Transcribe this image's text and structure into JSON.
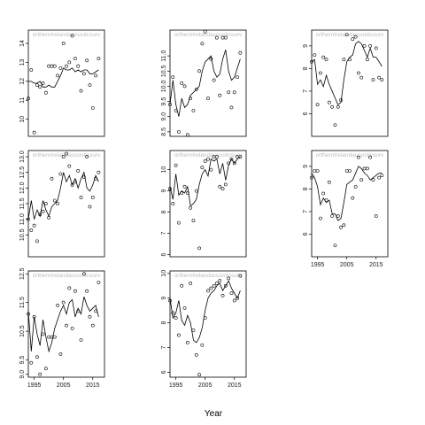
{
  "figure": {
    "xlabel": "Year"
  },
  "chart_data": [
    {
      "type": "scatter",
      "title": "orthernIrelandacousticsurv",
      "xlim": [
        1993,
        2019
      ],
      "ylim": [
        9.1,
        14.7
      ],
      "yticks": [
        10,
        11,
        12,
        13,
        14
      ],
      "show_xticks": false,
      "xticks": [
        1995,
        2005,
        2015
      ],
      "series": [
        {
          "name": "observed",
          "mode": "markers",
          "x": [
            1993,
            1994,
            1995,
            1996,
            1997,
            1998,
            1999,
            2000,
            2001,
            2002,
            2003,
            2004,
            2005,
            2006,
            2007,
            2008,
            2009,
            2010,
            2011,
            2012,
            2013,
            2014,
            2015,
            2016,
            2017
          ],
          "y": [
            11.1,
            12.6,
            9.3,
            11.8,
            11.7,
            11.9,
            11.4,
            12.8,
            12.8,
            12.8,
            12.3,
            12.7,
            14.0,
            12.8,
            13.0,
            14.4,
            13.2,
            12.8,
            11.5,
            12.4,
            13.1,
            11.8,
            10.6,
            12.3,
            13.2
          ]
        },
        {
          "name": "fitted",
          "mode": "line",
          "x": [
            1993,
            1994,
            1995,
            1996,
            1997,
            1998,
            1999,
            2000,
            2001,
            2002,
            2003,
            2004,
            2005,
            2006,
            2007,
            2008,
            2009,
            2010,
            2011,
            2012,
            2013,
            2014,
            2015,
            2016,
            2017
          ],
          "y": [
            12.0,
            12.0,
            11.9,
            11.9,
            12.0,
            11.7,
            11.7,
            11.8,
            11.7,
            11.7,
            12.0,
            12.3,
            12.7,
            12.6,
            12.6,
            12.7,
            12.5,
            12.6,
            12.5,
            12.6,
            12.6,
            12.4,
            12.4,
            12.5,
            12.6
          ]
        }
      ]
    },
    {
      "type": "scatter",
      "title": "orthernIrelandacousticsurv",
      "xlim": [
        1993,
        2019
      ],
      "ylim": [
        8.35,
        11.85
      ],
      "yticks": [
        8.5,
        9.0,
        9.5,
        10.0,
        10.5,
        11.0
      ],
      "show_xticks": false,
      "xticks": [
        1995,
        2005,
        2015
      ],
      "series": [
        {
          "name": "observed",
          "mode": "markers",
          "x": [
            1993,
            1994,
            1995,
            1996,
            1997,
            1998,
            1999,
            2000,
            2001,
            2002,
            2003,
            2004,
            2005,
            2006,
            2007,
            2008,
            2009,
            2010,
            2011,
            2012,
            2013,
            2014,
            2015,
            2016,
            2017
          ],
          "y": [
            9.4,
            10.3,
            9.2,
            8.5,
            10.1,
            10.0,
            8.4,
            9.6,
            9.2,
            9.9,
            10.5,
            11.4,
            11.8,
            9.6,
            10.9,
            10.2,
            11.6,
            9.7,
            11.6,
            11.6,
            9.8,
            9.3,
            9.8,
            10.3,
            11.1
          ]
        },
        {
          "name": "fitted",
          "mode": "line",
          "x": [
            1993,
            1994,
            1995,
            1996,
            1997,
            1998,
            1999,
            2000,
            2001,
            2002,
            2003,
            2004,
            2005,
            2006,
            2007,
            2008,
            2009,
            2010,
            2011,
            2012,
            2013,
            2014,
            2015,
            2016,
            2017
          ],
          "y": [
            9.4,
            10.2,
            9.4,
            9.0,
            9.6,
            9.3,
            9.4,
            9.7,
            9.8,
            9.9,
            10.0,
            10.5,
            10.8,
            10.9,
            11.0,
            10.5,
            10.3,
            10.4,
            10.9,
            11.2,
            10.5,
            10.2,
            10.3,
            10.6,
            10.9
          ]
        }
      ]
    },
    {
      "type": "scatter",
      "title": "orthernIrelandacousticsurv",
      "xlim": [
        1993,
        2019
      ],
      "ylim": [
        5.0,
        9.7
      ],
      "yticks": [
        6,
        7,
        8,
        9
      ],
      "show_xticks": false,
      "xticks": [
        1995,
        2005,
        2015
      ],
      "series": [
        {
          "name": "observed",
          "mode": "markers",
          "x": [
            1993,
            1994,
            1995,
            1996,
            1997,
            1998,
            1999,
            2000,
            2001,
            2002,
            2003,
            2004,
            2005,
            2006,
            2007,
            2008,
            2009,
            2010,
            2011,
            2012,
            2013,
            2014,
            2015,
            2016,
            2017
          ],
          "y": [
            8.3,
            8.6,
            6.4,
            7.8,
            8.5,
            8.4,
            6.5,
            6.3,
            5.5,
            6.3,
            6.6,
            8.4,
            9.5,
            8.4,
            9.3,
            9.4,
            7.8,
            7.6,
            9.0,
            8.4,
            9.0,
            7.5,
            8.9,
            7.6,
            7.5
          ]
        },
        {
          "name": "fitted",
          "mode": "line",
          "x": [
            1993,
            1994,
            1995,
            1996,
            1997,
            1998,
            1999,
            2000,
            2001,
            2002,
            2003,
            2004,
            2005,
            2006,
            2007,
            2008,
            2009,
            2010,
            2011,
            2012,
            2013,
            2014,
            2015,
            2016,
            2017
          ],
          "y": [
            8.3,
            8.4,
            7.3,
            7.5,
            7.2,
            7.7,
            7.3,
            7.0,
            6.7,
            6.4,
            6.5,
            7.5,
            8.3,
            8.5,
            8.6,
            9.1,
            9.2,
            9.1,
            8.8,
            8.5,
            8.9,
            8.5,
            8.5,
            8.3,
            8.1
          ]
        }
      ]
    },
    {
      "type": "scatter",
      "title": "orthernIrelandacousticsurv",
      "xlim": [
        1993,
        2019
      ],
      "ylim": [
        9.8,
        13.2
      ],
      "yticks": [
        10.5,
        11.0,
        11.5,
        12.0,
        12.5,
        13.0
      ],
      "show_xticks": false,
      "xticks": [
        1995,
        2005,
        2015
      ],
      "series": [
        {
          "name": "observed",
          "mode": "markers",
          "x": [
            1993,
            1994,
            1995,
            1996,
            1997,
            1998,
            1999,
            2000,
            2001,
            2002,
            2003,
            2004,
            2005,
            2006,
            2007,
            2008,
            2009,
            2010,
            2011,
            2012,
            2013,
            2014,
            2015,
            2016,
            2017
          ],
          "y": [
            11.0,
            10.65,
            10.8,
            10.3,
            11.15,
            11.25,
            11.5,
            11.05,
            12.3,
            11.6,
            11.5,
            12.45,
            13.0,
            13.1,
            12.7,
            12.1,
            12.2,
            12.55,
            11.7,
            12.35,
            13.0,
            11.4,
            11.7,
            12.3,
            12.5
          ]
        },
        {
          "name": "fitted",
          "mode": "line",
          "x": [
            1993,
            1994,
            1995,
            1996,
            1997,
            1998,
            1999,
            2000,
            2001,
            2002,
            2003,
            2004,
            2005,
            2006,
            2007,
            2008,
            2009,
            2010,
            2011,
            2012,
            2013,
            2014,
            2015,
            2016,
            2017
          ],
          "y": [
            11.0,
            11.6,
            11.0,
            11.3,
            11.1,
            11.6,
            11.3,
            11.1,
            11.4,
            11.5,
            11.6,
            12.0,
            12.5,
            12.2,
            12.4,
            12.1,
            12.3,
            12.0,
            12.3,
            12.5,
            12.0,
            11.9,
            12.1,
            12.4,
            12.2
          ]
        }
      ]
    },
    {
      "type": "scatter",
      "title": "orthernIrelandacousticsurv",
      "xlim": [
        1993,
        2019
      ],
      "ylim": [
        5.9,
        10.9
      ],
      "yticks": [
        6,
        7,
        8,
        9,
        10
      ],
      "show_xticks": false,
      "xticks": [
        1995,
        2005,
        2015
      ],
      "series": [
        {
          "name": "observed",
          "mode": "markers",
          "x": [
            1993,
            1994,
            1995,
            1996,
            1997,
            1998,
            1999,
            2000,
            2001,
            2002,
            2003,
            2004,
            2005,
            2006,
            2007,
            2008,
            2009,
            2010,
            2011,
            2012,
            2013,
            2014,
            2015,
            2016,
            2017
          ],
          "y": [
            9.1,
            8.4,
            10.2,
            7.5,
            8.9,
            9.2,
            8.9,
            8.2,
            7.6,
            9.0,
            6.3,
            10.1,
            10.4,
            10.5,
            10.0,
            10.6,
            10.6,
            9.2,
            9.1,
            9.3,
            10.3,
            10.5,
            10.3,
            10.6,
            10.6
          ]
        },
        {
          "name": "fitted",
          "mode": "line",
          "x": [
            1993,
            1994,
            1995,
            1996,
            1997,
            1998,
            1999,
            2000,
            2001,
            2002,
            2003,
            2004,
            2005,
            2006,
            2007,
            2008,
            2009,
            2010,
            2011,
            2012,
            2013,
            2014,
            2015,
            2016,
            2017
          ],
          "y": [
            9.2,
            8.6,
            9.8,
            8.8,
            9.0,
            8.9,
            9.2,
            8.3,
            8.4,
            8.6,
            9.3,
            9.8,
            10.0,
            9.7,
            10.5,
            10.4,
            10.5,
            9.8,
            10.3,
            9.5,
            10.2,
            10.5,
            10.3,
            10.5,
            10.6
          ]
        }
      ]
    },
    {
      "type": "scatter",
      "title": "orthernIrelandacousticsurv",
      "xlim": [
        1993,
        2019
      ],
      "ylim": [
        5.0,
        9.7
      ],
      "yticks": [
        6,
        7,
        8,
        9
      ],
      "show_xticks": true,
      "xticks": [
        1995,
        2005,
        2015
      ],
      "series": [
        {
          "name": "observed",
          "mode": "markers",
          "x": [
            1993,
            1994,
            1995,
            1996,
            1997,
            1998,
            1999,
            2000,
            2001,
            2002,
            2003,
            2004,
            2005,
            2006,
            2007,
            2008,
            2009,
            2010,
            2011,
            2012,
            2013,
            2014,
            2015,
            2016,
            2017
          ],
          "y": [
            8.5,
            8.8,
            8.8,
            6.7,
            7.8,
            7.5,
            8.3,
            6.8,
            5.5,
            6.8,
            6.3,
            6.4,
            8.8,
            8.8,
            7.6,
            8.1,
            9.4,
            8.4,
            8.9,
            8.9,
            9.4,
            8.4,
            6.8,
            8.5,
            8.6
          ]
        },
        {
          "name": "fitted",
          "mode": "line",
          "x": [
            1993,
            1994,
            1995,
            1996,
            1997,
            1998,
            1999,
            2000,
            2001,
            2002,
            2003,
            2004,
            2005,
            2006,
            2007,
            2008,
            2009,
            2010,
            2011,
            2012,
            2013,
            2014,
            2015,
            2016,
            2017
          ],
          "y": [
            8.7,
            8.5,
            8.1,
            7.3,
            7.6,
            7.4,
            7.5,
            6.9,
            6.9,
            6.6,
            6.7,
            7.4,
            8.2,
            8.3,
            8.4,
            8.7,
            9.0,
            8.9,
            8.7,
            8.6,
            8.4,
            8.5,
            8.6,
            8.7,
            8.7
          ]
        }
      ]
    },
    {
      "type": "scatter",
      "title": "orthernIrelandacousticsurv",
      "xlim": [
        1993,
        2019
      ],
      "ylim": [
        8.9,
        12.6
      ],
      "yticks": [
        9.0,
        9.5,
        10.5,
        11.5,
        12.5
      ],
      "show_xticks": true,
      "xticks": [
        1995,
        2005,
        2015
      ],
      "series": [
        {
          "name": "observed",
          "mode": "markers",
          "x": [
            1993,
            1994,
            1995,
            1996,
            1997,
            1998,
            1999,
            2000,
            2001,
            2002,
            2003,
            2004,
            2005,
            2006,
            2007,
            2008,
            2009,
            2010,
            2011,
            2012,
            2013,
            2014,
            2015,
            2016,
            2017
          ],
          "y": [
            11.1,
            9.4,
            11.0,
            9.6,
            9.0,
            10.4,
            9.2,
            10.3,
            10.3,
            10.3,
            11.4,
            9.7,
            11.5,
            10.7,
            12.0,
            10.6,
            11.9,
            11.2,
            10.2,
            12.5,
            11.9,
            11.0,
            10.7,
            11.2,
            12.2
          ]
        },
        {
          "name": "fitted",
          "mode": "line",
          "x": [
            1993,
            1994,
            1995,
            1996,
            1997,
            1998,
            1999,
            2000,
            2001,
            2002,
            2003,
            2004,
            2005,
            2006,
            2007,
            2008,
            2009,
            2010,
            2011,
            2012,
            2013,
            2014,
            2015,
            2016,
            2017
          ],
          "y": [
            11.2,
            9.8,
            11.0,
            10.4,
            10.0,
            10.9,
            10.3,
            9.8,
            10.1,
            10.6,
            10.9,
            11.2,
            11.4,
            11.1,
            11.5,
            11.6,
            11.0,
            11.3,
            11.1,
            11.7,
            11.4,
            11.2,
            11.3,
            11.4,
            11.0
          ]
        }
      ]
    },
    {
      "type": "scatter",
      "title": "orthernIrelandacousticsurv",
      "xlim": [
        1993,
        2019
      ],
      "ylim": [
        5.8,
        10.1
      ],
      "yticks": [
        6,
        7,
        8,
        9,
        10
      ],
      "show_xticks": true,
      "xticks": [
        1995,
        2005,
        2015
      ],
      "series": [
        {
          "name": "observed",
          "mode": "markers",
          "x": [
            1993,
            1994,
            1995,
            1996,
            1997,
            1998,
            1999,
            2000,
            2001,
            2002,
            2003,
            2004,
            2005,
            2006,
            2007,
            2008,
            2009,
            2010,
            2011,
            2012,
            2013,
            2014,
            2015,
            2016,
            2017
          ],
          "y": [
            8.9,
            8.4,
            8.2,
            7.5,
            9.5,
            8.6,
            7.2,
            9.6,
            7.7,
            6.7,
            5.9,
            7.1,
            8.2,
            9.3,
            9.4,
            9.5,
            9.6,
            9.7,
            9.1,
            9.5,
            9.8,
            9.2,
            8.9,
            9.0,
            9.9
          ]
        },
        {
          "name": "fitted",
          "mode": "line",
          "x": [
            1993,
            1994,
            1995,
            1996,
            1997,
            1998,
            1999,
            2000,
            2001,
            2002,
            2003,
            2004,
            2005,
            2006,
            2007,
            2008,
            2009,
            2010,
            2011,
            2012,
            2013,
            2014,
            2015,
            2016,
            2017
          ],
          "y": [
            9.0,
            8.2,
            8.4,
            8.9,
            8.1,
            7.9,
            8.3,
            8.0,
            7.3,
            7.2,
            7.4,
            7.8,
            8.5,
            9.0,
            9.2,
            9.3,
            9.5,
            9.6,
            9.3,
            9.5,
            9.7,
            9.4,
            9.2,
            9.0,
            9.3
          ]
        }
      ]
    }
  ]
}
